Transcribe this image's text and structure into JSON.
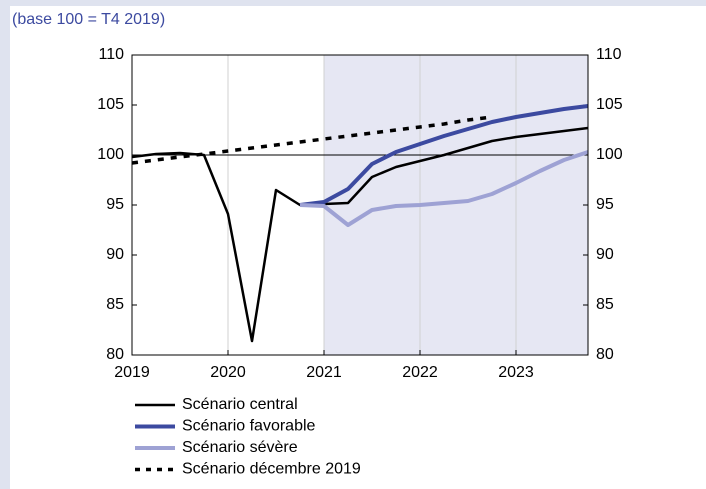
{
  "chart_data": {
    "type": "line",
    "subtitle": "(base 100 = T4 2019)",
    "x": [
      2019,
      2019.25,
      2019.5,
      2019.75,
      2020,
      2020.25,
      2020.5,
      2020.75,
      2021,
      2021.25,
      2021.5,
      2021.75,
      2022,
      2022.25,
      2022.5,
      2022.75,
      2023,
      2023.25,
      2023.5,
      2023.75
    ],
    "xlim": [
      2019,
      2023.75
    ],
    "xticks": [
      2019,
      2020,
      2021,
      2022,
      2023
    ],
    "ylim": [
      80,
      110
    ],
    "yticks": [
      80,
      85,
      90,
      95,
      100,
      105,
      110
    ],
    "y2lim": [
      80,
      110
    ],
    "y2ticks": [
      80,
      85,
      90,
      95,
      100,
      105,
      110
    ],
    "reference_line": 100,
    "shaded_from": 2021,
    "shade_color": "#e6e7f3",
    "grid": true,
    "legend": "bottom-left",
    "series": [
      {
        "name": "Scénario central",
        "color": "#000000",
        "style": "solid",
        "values": [
          99.8,
          100.1,
          100.2,
          100.0,
          94.1,
          81.4,
          96.5,
          95.0,
          95.1,
          95.2,
          97.8,
          98.8,
          99.4,
          100.0,
          100.7,
          101.4,
          101.8,
          102.1,
          102.4,
          102.7
        ]
      },
      {
        "name": "Scénario favorable",
        "color": "#3c4aa0",
        "style": "solid",
        "values": [
          null,
          null,
          null,
          null,
          null,
          null,
          null,
          95.0,
          95.3,
          96.6,
          99.1,
          100.3,
          101.1,
          101.9,
          102.6,
          103.3,
          103.8,
          104.2,
          104.6,
          104.9
        ]
      },
      {
        "name": "Scénario sévère",
        "color": "#9ea2d4",
        "style": "solid",
        "values": [
          null,
          null,
          null,
          null,
          null,
          null,
          null,
          95.0,
          94.9,
          93.0,
          94.5,
          94.9,
          95.0,
          95.2,
          95.4,
          96.1,
          97.2,
          98.4,
          99.5,
          100.3
        ]
      },
      {
        "name": "Scénario décembre 2019",
        "color": "#000000",
        "style": "dotted",
        "values": [
          99.2,
          99.5,
          99.8,
          100.1,
          100.4,
          100.7,
          101.0,
          101.3,
          101.6,
          101.9,
          102.2,
          102.5,
          102.8,
          103.1,
          103.5,
          103.8,
          null,
          null,
          null,
          null
        ]
      }
    ]
  }
}
